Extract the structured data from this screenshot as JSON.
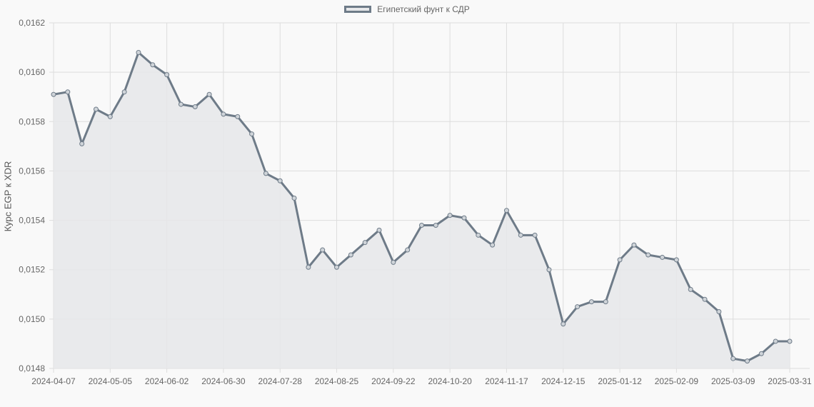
{
  "legend": {
    "label": "Египетский фунт к СДР"
  },
  "colors": {
    "line": "#6e7b88",
    "fill": "#e6e8ea",
    "grid": "#dddddd",
    "point_fill": "#cfd4d9"
  },
  "chart_data": {
    "type": "line",
    "title": "",
    "xlabel": "",
    "ylabel": "Курс EGP к XDR",
    "ylim": [
      0.0148,
      0.0162
    ],
    "yticks": [
      "0,0162",
      "0,0160",
      "0,0158",
      "0,0156",
      "0,0154",
      "0,0152",
      "0,0150",
      "0,0148"
    ],
    "xticks": [
      "2024-04-07",
      "2024-05-05",
      "2024-06-02",
      "2024-06-30",
      "2024-07-28",
      "2024-08-25",
      "2024-09-22",
      "2024-10-20",
      "2024-11-17",
      "2024-12-15",
      "2025-01-12",
      "2025-02-09",
      "2025-03-09",
      "2025-03-31"
    ],
    "grid": true,
    "legend_position": "top",
    "series": [
      {
        "name": "Египетский фунт к СДР",
        "x": [
          "2024-04-07",
          "2024-04-14",
          "2024-04-21",
          "2024-04-28",
          "2024-05-05",
          "2024-05-12",
          "2024-05-19",
          "2024-05-26",
          "2024-06-02",
          "2024-06-09",
          "2024-06-16",
          "2024-06-23",
          "2024-06-30",
          "2024-07-07",
          "2024-07-14",
          "2024-07-21",
          "2024-07-28",
          "2024-08-04",
          "2024-08-11",
          "2024-08-18",
          "2024-08-25",
          "2024-09-01",
          "2024-09-08",
          "2024-09-15",
          "2024-09-22",
          "2024-09-29",
          "2024-10-06",
          "2024-10-13",
          "2024-10-20",
          "2024-10-27",
          "2024-11-03",
          "2024-11-10",
          "2024-11-17",
          "2024-11-24",
          "2024-12-01",
          "2024-12-08",
          "2024-12-15",
          "2024-12-22",
          "2024-12-29",
          "2025-01-05",
          "2025-01-12",
          "2025-01-19",
          "2025-01-26",
          "2025-02-02",
          "2025-02-09",
          "2025-02-16",
          "2025-02-23",
          "2025-03-02",
          "2025-03-09",
          "2025-03-16",
          "2025-03-23",
          "2025-03-30",
          "2025-03-31"
        ],
        "values": [
          0.01591,
          0.01592,
          0.01571,
          0.01585,
          0.01582,
          0.01592,
          0.01608,
          0.01603,
          0.01599,
          0.01587,
          0.01586,
          0.01591,
          0.01583,
          0.01582,
          0.01575,
          0.01559,
          0.01556,
          0.01549,
          0.01521,
          0.01528,
          0.01521,
          0.01526,
          0.01531,
          0.01536,
          0.01523,
          0.01528,
          0.01538,
          0.01538,
          0.01542,
          0.01541,
          0.01534,
          0.0153,
          0.01544,
          0.01534,
          0.01534,
          0.0152,
          0.01498,
          0.01505,
          0.01507,
          0.01507,
          0.01524,
          0.0153,
          0.01526,
          0.01525,
          0.01524,
          0.01512,
          0.01508,
          0.01503,
          0.01484,
          0.01483,
          0.01486,
          0.01491,
          0.01491
        ]
      }
    ]
  }
}
